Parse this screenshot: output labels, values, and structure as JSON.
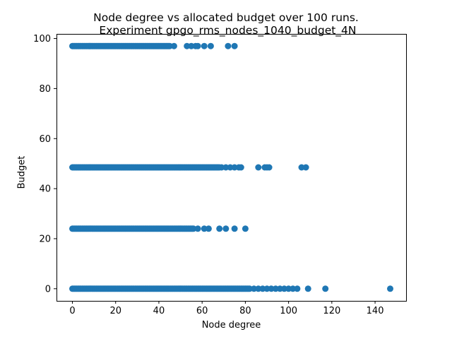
{
  "chart_data": {
    "type": "scatter",
    "title_line1": "Node degree vs allocated budget over 100 runs.",
    "title_line2": " Experiment gpgo_rms_nodes_1040_budget_4N",
    "xlabel": "Node degree",
    "ylabel": "Budget",
    "xlim": [
      -7.35,
      154.35
    ],
    "ylim": [
      -4.85,
      101.85
    ],
    "xticks": [
      0,
      20,
      40,
      60,
      80,
      100,
      120,
      140
    ],
    "yticks": [
      0,
      20,
      40,
      60,
      80,
      100
    ],
    "grid": false,
    "marker_color": "#1f77b4",
    "series": [
      {
        "budget_level": 97,
        "dense_range": [
          0,
          45
        ],
        "x": [
          47,
          53,
          55,
          57,
          58,
          61,
          64,
          72,
          75
        ]
      },
      {
        "budget_level": 48.5,
        "dense_range": [
          0,
          68
        ],
        "x": [
          69,
          71,
          73,
          75,
          77,
          78,
          86,
          89,
          90,
          91,
          106,
          108
        ]
      },
      {
        "budget_level": 24,
        "dense_range": [
          0,
          56
        ],
        "x": [
          58,
          61,
          63,
          68,
          71,
          75,
          80
        ]
      },
      {
        "budget_level": 0,
        "dense_range": [
          0,
          82
        ],
        "x": [
          84,
          86,
          88,
          90,
          92,
          94,
          96,
          98,
          100,
          102,
          104,
          109,
          117,
          147
        ]
      }
    ]
  }
}
